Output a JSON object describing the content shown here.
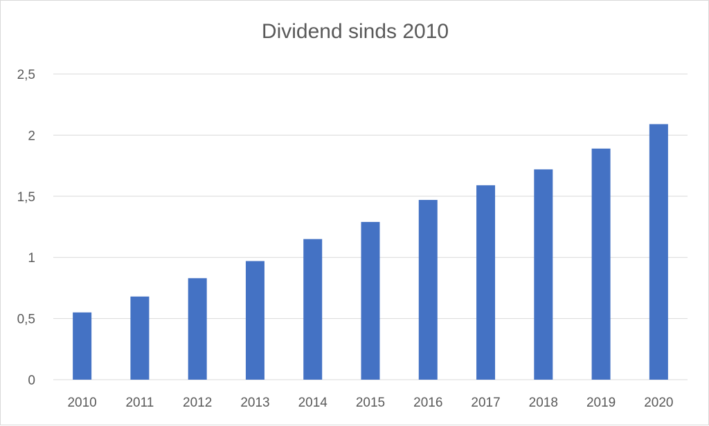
{
  "chart_data": {
    "type": "bar",
    "title": "Dividend sinds 2010",
    "xlabel": "",
    "ylabel": "",
    "categories": [
      "2010",
      "2011",
      "2012",
      "2013",
      "2014",
      "2015",
      "2016",
      "2017",
      "2018",
      "2019",
      "2020"
    ],
    "values": [
      0.55,
      0.68,
      0.83,
      0.97,
      1.15,
      1.29,
      1.47,
      1.59,
      1.72,
      1.89,
      2.09
    ],
    "ylim": [
      0,
      2.5
    ],
    "yticks": [
      "0",
      "0,5",
      "1",
      "1,5",
      "2",
      "2,5"
    ],
    "ytick_values": [
      0,
      0.5,
      1,
      1.5,
      2,
      2.5
    ],
    "grid": true,
    "legend": "none",
    "bar_color": "#4472C4",
    "grid_color": "#d9d9d9"
  }
}
